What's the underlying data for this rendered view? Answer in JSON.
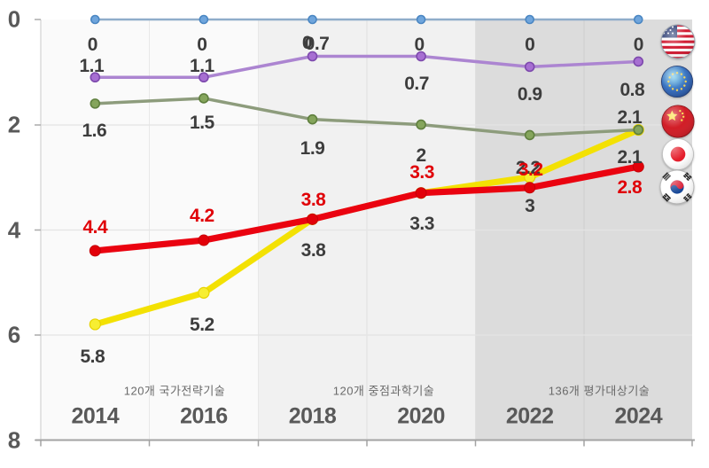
{
  "chart_data": {
    "type": "line",
    "title": "",
    "y_axis": {
      "label": "",
      "ticks": [
        0,
        2,
        4,
        6,
        8
      ],
      "range": [
        0,
        8
      ],
      "inverted": true,
      "grid": true
    },
    "x_labels": [
      "2014",
      "2016",
      "2018",
      "2020",
      "2022",
      "2024"
    ],
    "legend_position": "right-flags",
    "bands": [
      {
        "label": "120개 국가전략기술",
        "years": [
          "2014",
          "2016"
        ],
        "fill": "#fafafa"
      },
      {
        "label": "120개 중점과학기술",
        "years": [
          "2018",
          "2020"
        ],
        "fill": "#f1f1f1"
      },
      {
        "label": "136개 평가대상기술",
        "years": [
          "2022",
          "2024"
        ],
        "fill": "#dcdcdc"
      }
    ],
    "series": [
      {
        "id": "usa",
        "name": "USA",
        "flag_icon": "usa-flag-icon",
        "line_color": "#8fadca",
        "marker_fill": "#6fa5dc",
        "marker_stroke": "#4a86c2",
        "label_color": "#3d3d3d",
        "values": [
          0,
          0,
          0,
          0,
          0,
          0
        ],
        "labels": [
          "0",
          "0",
          "0",
          "0",
          "0",
          "0"
        ]
      },
      {
        "id": "eu",
        "name": "EU",
        "flag_icon": "eu-flag-icon",
        "line_color": "#ac85d1",
        "marker_fill": "#a76fd2",
        "marker_stroke": "#7d49ad",
        "label_color": "#3d3d3d",
        "values": [
          1.1,
          1.1,
          0.7,
          0.7,
          0.9,
          0.8
        ],
        "labels": [
          "1.1",
          "1.1",
          "0.7",
          "0.7",
          "0.9",
          "0.8"
        ]
      },
      {
        "id": "china",
        "name": "China",
        "flag_icon": "china-flag-icon",
        "line_color": "#f3e103",
        "marker_fill": "#f7ee32",
        "marker_stroke": "#e6d300",
        "label_color": "#3d3d3d",
        "values": [
          5.8,
          5.2,
          3.8,
          3.3,
          3.0,
          2.1
        ],
        "labels": [
          "5.8",
          "5.2",
          "3.8",
          "3.3",
          "3",
          "2.1"
        ]
      },
      {
        "id": "japan",
        "name": "Japan",
        "flag_icon": "japan-flag-icon",
        "line_color": "#8d9c7c",
        "marker_fill": "#85a55c",
        "marker_stroke": "#5f7f3e",
        "label_color": "#3d3d3d",
        "values": [
          1.6,
          1.5,
          1.9,
          2.0,
          2.2,
          2.1
        ],
        "labels": [
          "1.6",
          "1.5",
          "1.9",
          "2",
          "2.2",
          "2.1"
        ]
      },
      {
        "id": "korea",
        "name": "Korea",
        "flag_icon": "korea-flag-icon",
        "line_color": "#ea0310",
        "marker_fill": "#e20009",
        "marker_stroke": "#c40008",
        "label_color": "#e00007",
        "values": [
          4.4,
          4.2,
          3.8,
          3.3,
          3.2,
          2.8
        ],
        "labels": [
          "4.4",
          "4.2",
          "3.8",
          "3.3",
          "3.2",
          "2.8"
        ]
      }
    ]
  }
}
